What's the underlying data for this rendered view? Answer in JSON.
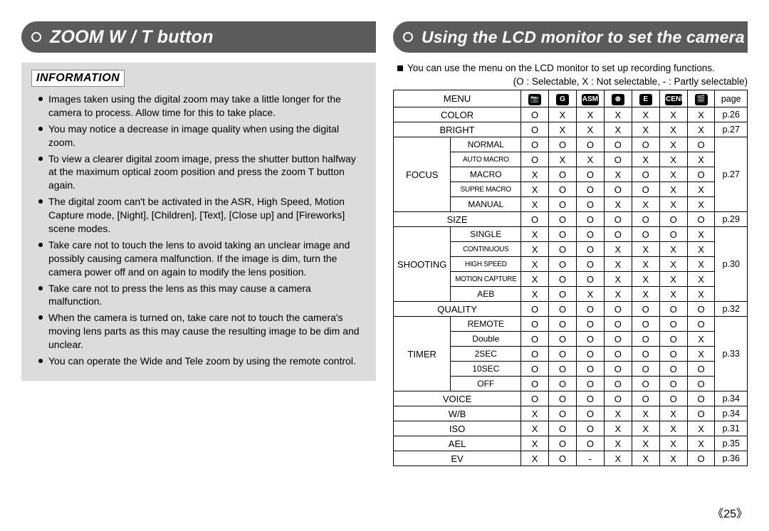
{
  "leftTitle": "ZOOM W / T button",
  "rightTitle": "Using the LCD monitor to set the camera",
  "infoLabel": "INFORMATION",
  "infoBullets": [
    "Images taken using the digital zoom may take a little longer for the camera to process. Allow time for this to take place.",
    "You may notice a decrease in image quality when using the digital zoom.",
    "To view a clearer digital zoom image, press the shutter button halfway at the maximum optical zoom position and press the zoom T button again.",
    "The digital zoom can't be activated in the ASR, High Speed, Motion Capture  mode, [Night], [Children], [Text], [Close up] and [Fireworks] scene modes.",
    "Take care not to touch the lens to avoid taking an unclear image and possibly causing camera malfunction. If the image is dim, turn the camera power off and on again to modify the lens position.",
    "Take care not to press the lens as this may cause a camera malfunction.",
    "When the camera is turned on, take care not to touch the camera's moving lens parts as this may cause the resulting image to be dim and unclear.",
    "You can operate the Wide and Tele zoom by using the remote control."
  ],
  "introText": "You can use the menu on the LCD monitor to set up recording functions.",
  "legendText": "(O : Selectable, X : Not selectable, - : Partly selectable)",
  "modeHeaders": [
    "📷",
    "G",
    "ASM",
    "⊛",
    "E",
    "SCENE",
    "🎬"
  ],
  "menuLabel": "MENU",
  "pageLabel": "page",
  "rows": [
    {
      "label": "COLOR",
      "span": 2,
      "v": [
        "O",
        "X",
        "X",
        "X",
        "X",
        "X",
        "X"
      ],
      "page": "p.26"
    },
    {
      "label": "BRIGHT",
      "span": 2,
      "v": [
        "O",
        "X",
        "X",
        "X",
        "X",
        "X",
        "X"
      ],
      "page": "p.27"
    },
    {
      "group": "FOCUS",
      "groupRows": 5,
      "sub": "NORMAL",
      "v": [
        "O",
        "O",
        "O",
        "O",
        "O",
        "X",
        "O"
      ],
      "page": "p.27",
      "pageRows": 5
    },
    {
      "sub": "AUTO MACRO",
      "xs": true,
      "v": [
        "O",
        "X",
        "X",
        "O",
        "X",
        "X",
        "X"
      ]
    },
    {
      "sub": "MACRO",
      "v": [
        "X",
        "O",
        "O",
        "X",
        "O",
        "X",
        "O"
      ]
    },
    {
      "sub": "SUPRE MACRO",
      "xs": true,
      "v": [
        "X",
        "O",
        "O",
        "O",
        "O",
        "X",
        "X"
      ]
    },
    {
      "sub": "MANUAL",
      "v": [
        "X",
        "O",
        "O",
        "X",
        "X",
        "X",
        "X"
      ]
    },
    {
      "label": "SIZE",
      "span": 2,
      "v": [
        "O",
        "O",
        "O",
        "O",
        "O",
        "O",
        "O"
      ],
      "page": "p.29"
    },
    {
      "group": "SHOOTING",
      "groupRows": 5,
      "sub": "SINGLE",
      "v": [
        "X",
        "O",
        "O",
        "O",
        "O",
        "O",
        "X"
      ],
      "page": "p.30",
      "pageRows": 5
    },
    {
      "sub": "CONTINUOUS",
      "xs": true,
      "v": [
        "X",
        "O",
        "O",
        "X",
        "X",
        "X",
        "X"
      ]
    },
    {
      "sub": "HIGH SPEED",
      "xs": true,
      "v": [
        "X",
        "O",
        "O",
        "X",
        "X",
        "X",
        "X"
      ]
    },
    {
      "sub": "MOTION CAPTURE",
      "xs": true,
      "v": [
        "X",
        "O",
        "O",
        "X",
        "X",
        "X",
        "X"
      ]
    },
    {
      "sub": "AEB",
      "v": [
        "X",
        "O",
        "X",
        "X",
        "X",
        "X",
        "X"
      ]
    },
    {
      "label": "QUALITY",
      "span": 2,
      "v": [
        "O",
        "O",
        "O",
        "O",
        "O",
        "O",
        "O"
      ],
      "page": "p.32"
    },
    {
      "group": "TIMER",
      "groupRows": 5,
      "sub": "REMOTE",
      "v": [
        "O",
        "O",
        "O",
        "O",
        "O",
        "O",
        "O"
      ],
      "page": "p.33",
      "pageRows": 5
    },
    {
      "sub": "Double",
      "v": [
        "O",
        "O",
        "O",
        "O",
        "O",
        "O",
        "X"
      ]
    },
    {
      "sub": "2SEC",
      "v": [
        "O",
        "O",
        "O",
        "O",
        "O",
        "O",
        "X"
      ]
    },
    {
      "sub": "10SEC",
      "v": [
        "O",
        "O",
        "O",
        "O",
        "O",
        "O",
        "O"
      ]
    },
    {
      "sub": "OFF",
      "v": [
        "O",
        "O",
        "O",
        "O",
        "O",
        "O",
        "O"
      ]
    },
    {
      "label": "VOICE",
      "span": 2,
      "v": [
        "O",
        "O",
        "O",
        "O",
        "O",
        "O",
        "O"
      ],
      "page": "p.34"
    },
    {
      "label": "W/B",
      "span": 2,
      "v": [
        "X",
        "O",
        "O",
        "X",
        "X",
        "X",
        "O"
      ],
      "page": "p.34"
    },
    {
      "label": "ISO",
      "span": 2,
      "v": [
        "X",
        "O",
        "O",
        "X",
        "X",
        "X",
        "X"
      ],
      "page": "p.31"
    },
    {
      "label": "AEL",
      "span": 2,
      "v": [
        "X",
        "O",
        "O",
        "X",
        "X",
        "X",
        "X"
      ],
      "page": "p.35"
    },
    {
      "label": "EV",
      "span": 2,
      "v": [
        "X",
        "O",
        "-",
        "X",
        "X",
        "X",
        "O"
      ],
      "page": "p.36"
    }
  ],
  "pageNumber": "《25》"
}
